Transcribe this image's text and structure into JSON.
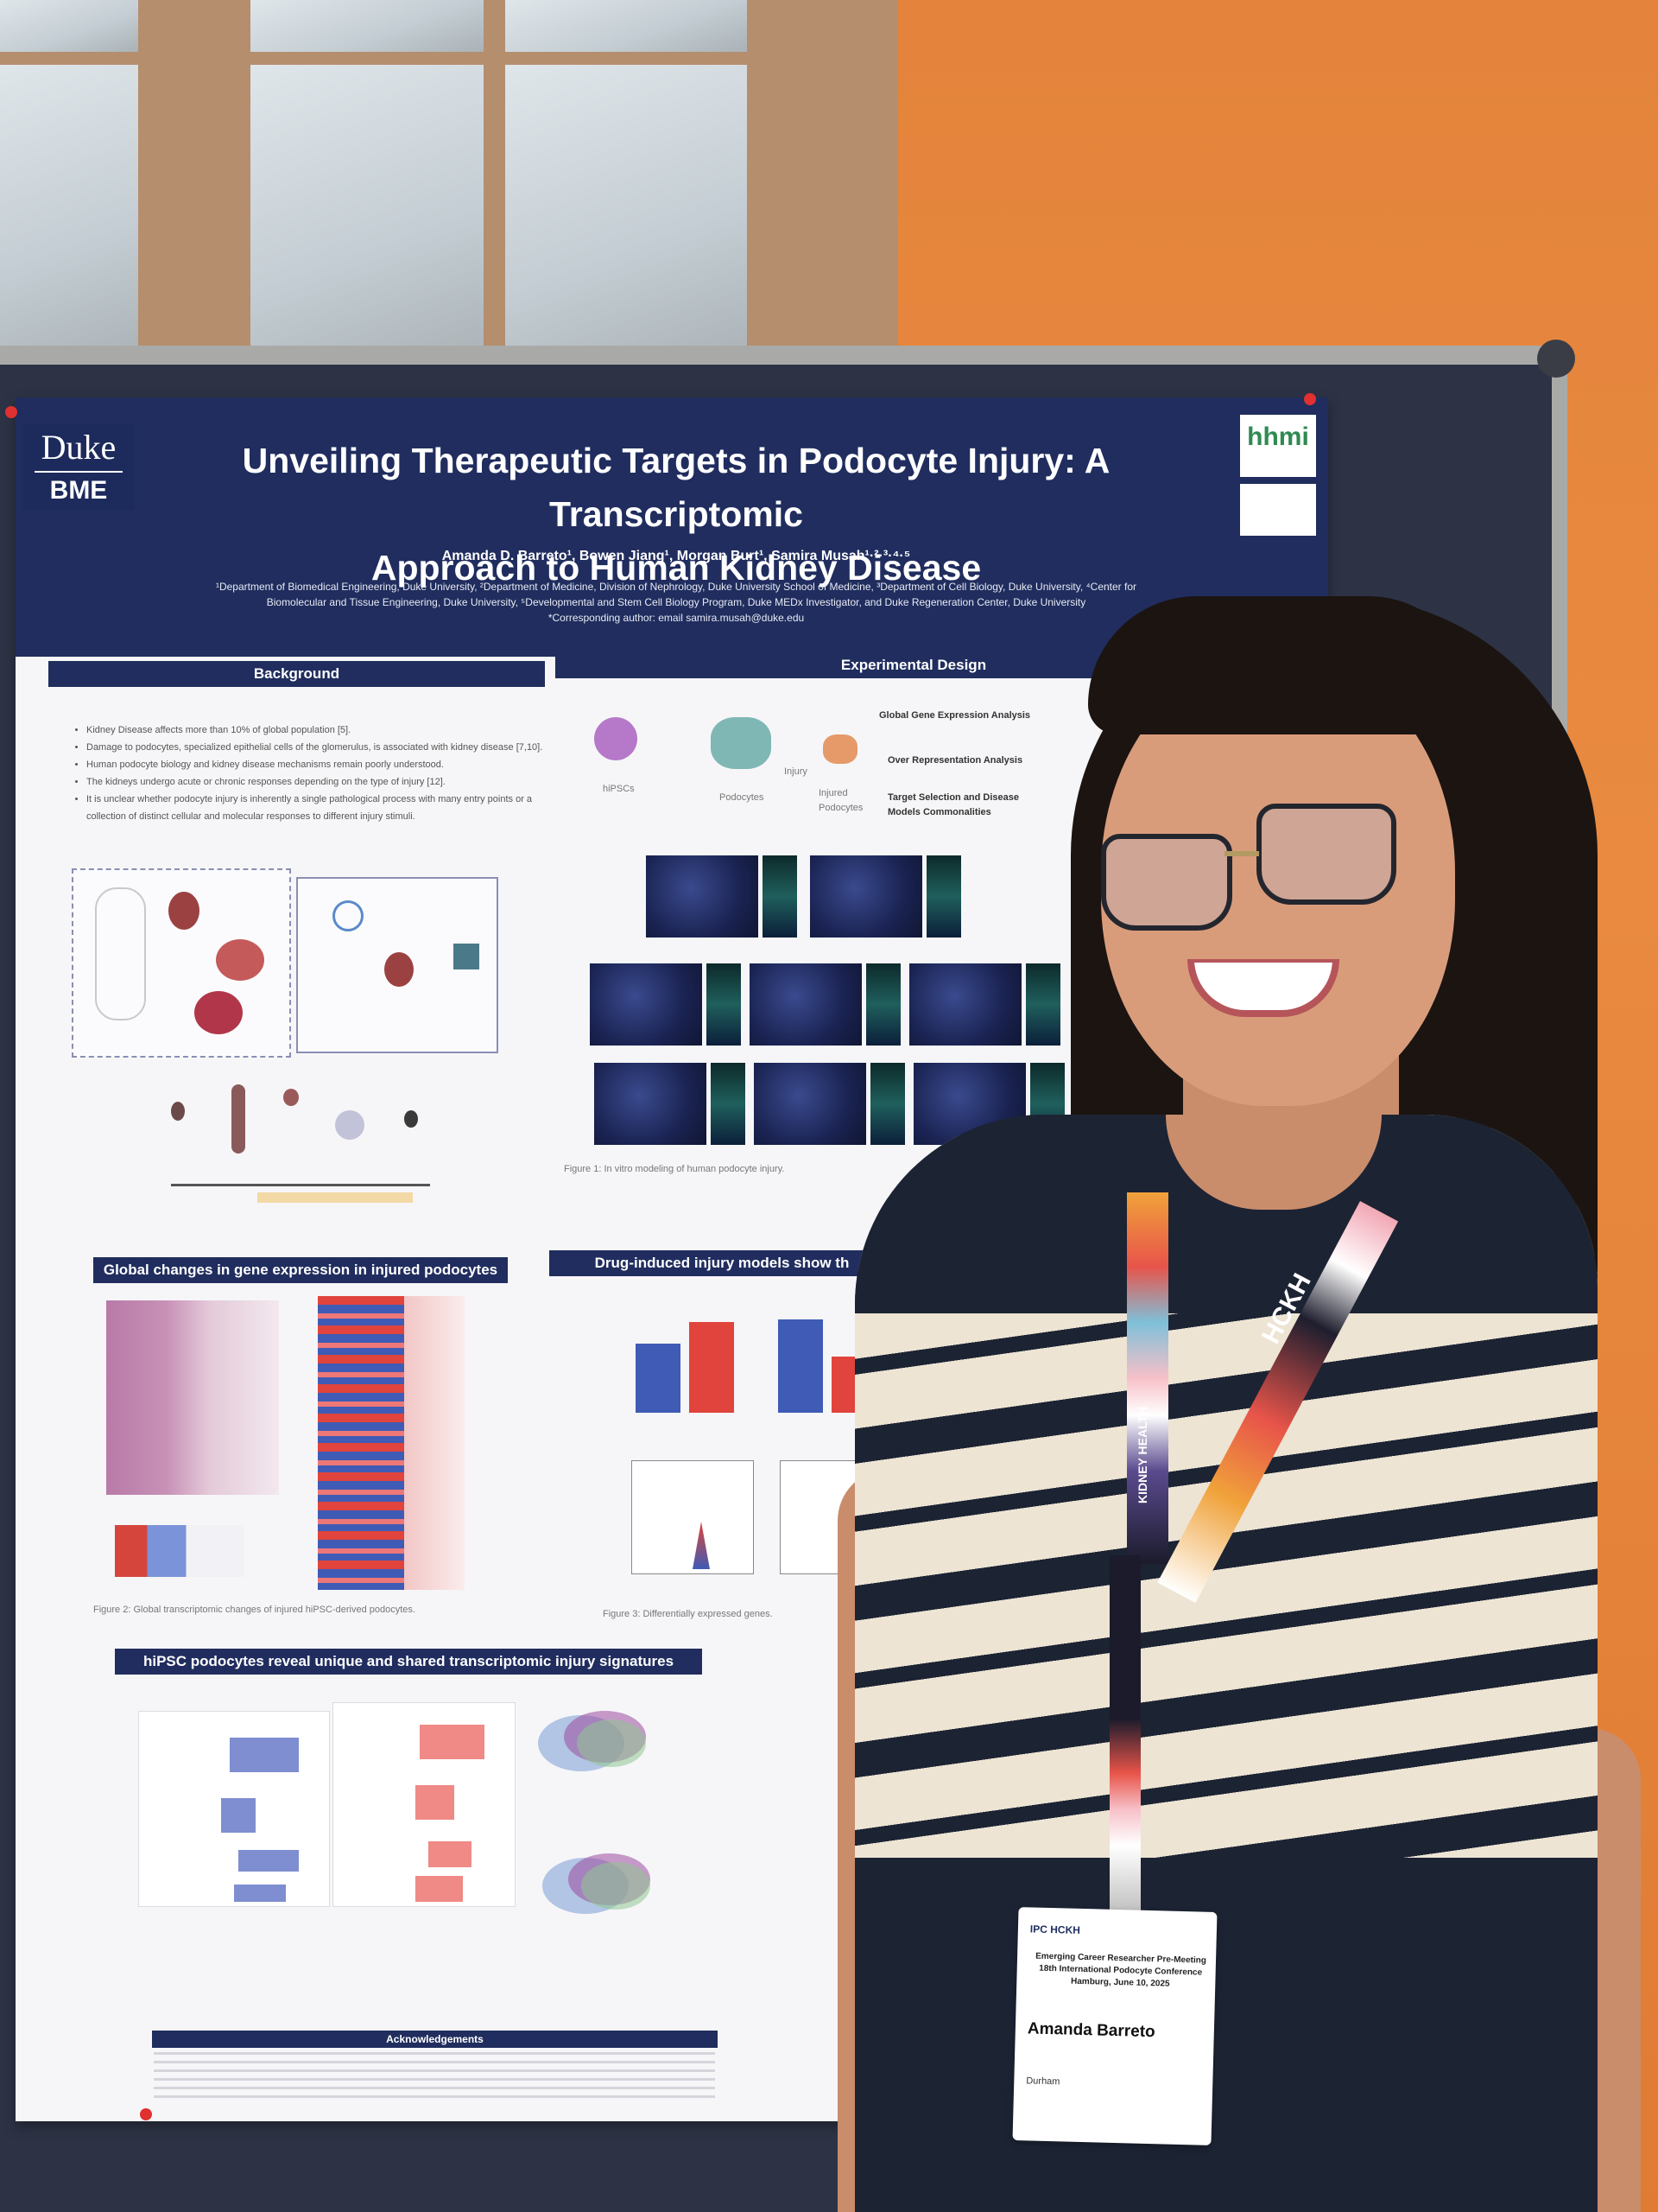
{
  "poster": {
    "logo_left_top": "Duke",
    "logo_left_bottom": "BME",
    "logo_right": "hhmi",
    "title_line1": "Unveiling Therapeutic Targets in Podocyte Injury: A Transcriptomic",
    "title_line2": "Approach to Human Kidney Disease",
    "authors": "Amanda D. Barreto¹, Bowen Jiang¹, Morgan Burt¹, Samira Musah¹·²·³·⁴·⁵",
    "affiliations": "¹Department of Biomedical Engineering, Duke University, ²Department of Medicine, Division of Nephrology, Duke University School of Medicine, ³Department of Cell Biology, Duke University, ⁴Center for Biomolecular and Tissue Engineering, Duke University, ⁵Developmental and Stem Cell Biology Program, Duke MEDx Investigator, and Duke Regeneration Center, Duke University",
    "corresponding": "*Corresponding author: email samira.musah@duke.edu",
    "sections": {
      "background": "Background",
      "experimental_design": "Experimental Design",
      "global_changes": "Global changes in gene expression in injured podocytes",
      "drug_induced": "Drug-induced injury models show th",
      "signatures": "hiPSC podocytes reveal unique and shared transcriptomic injury signatures",
      "acknowledgements": "Acknowledgements"
    },
    "background_bullets": [
      "Kidney Disease affects more than 10% of global population [5].",
      "Damage to podocytes, specialized epithelial cells of the glomerulus, is associated with kidney disease [7,10].",
      "Human podocyte biology and kidney disease mechanisms remain poorly understood.",
      "The kidneys undergo acute or chronic responses depending on the type of injury [12].",
      "It is unclear whether podocyte injury is inherently a single pathological process with many entry points or a collection of distinct cellular and molecular responses to different injury stimuli."
    ],
    "design_labels": [
      "hiPSCs",
      "Podocytes",
      "Injury",
      "Injured Podocytes"
    ],
    "design_outcomes": [
      "Global Gene Expression Analysis",
      "Over Representation Analysis",
      "Target Selection and Disease Models Commonalities"
    ],
    "figure_caption_1": "Figure 1: In vitro modeling of human podocyte injury.",
    "figure_caption_2": "Figure 2: Global transcriptomic changes of injured hiPSC-derived podocytes.",
    "figure_caption_3": "Figure 3: Differentially expressed genes."
  },
  "badge": {
    "logos": "IPC HCKH",
    "event_line1": "Emerging Career Researcher Pre-Meeting",
    "event_line2": "18th International Podocyte Conference",
    "event_line3": "Hamburg, June 10, 2025",
    "name": "Amanda Barreto",
    "city": "Durham"
  },
  "lanyard": {
    "text1": "HCKH",
    "text2": "KIDNEY HEALTH"
  },
  "colors": {
    "wall": "#e98a3f",
    "banner": "#202d5e",
    "board": "#2d3345",
    "bar_blue": "#3f5bb5",
    "bar_red": "#e0443c"
  }
}
